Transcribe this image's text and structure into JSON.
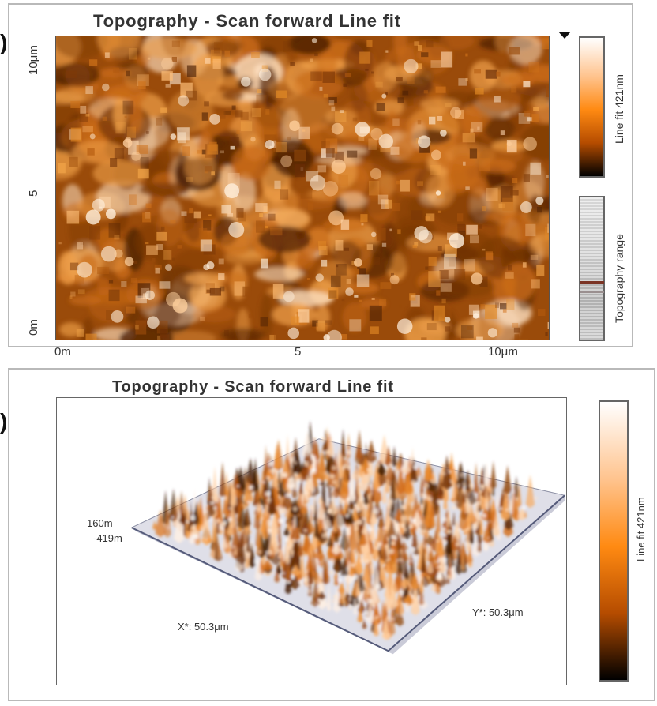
{
  "panels": {
    "top": {
      "title": "Topography - Scan forward  Line fit",
      "left_axis_top": "10μm",
      "left_axis_mid": "5",
      "left_axis_bottom": "0m",
      "bottom_axis_left": "0m",
      "bottom_axis_mid": "5",
      "bottom_axis_right": "10μm",
      "colorbar_label": "Line fit 421nm",
      "histogram_label": "Topography range"
    },
    "bottom": {
      "title": "Topography - Scan forward  Line fit",
      "height_high": "160m",
      "height_low": "-419m",
      "x_label": "X*: 50.3μm",
      "y_label": "Y*: 50.3μm",
      "colorbar_label": "Line fit 421nm"
    }
  },
  "colors": {
    "panel_border": "#b9b9b9",
    "text": "#333333",
    "orange": "#ff8a12",
    "brown": "#9c4300",
    "dark": "#000000"
  },
  "icons": {
    "top_indicator": "triangle-down-icon"
  }
}
